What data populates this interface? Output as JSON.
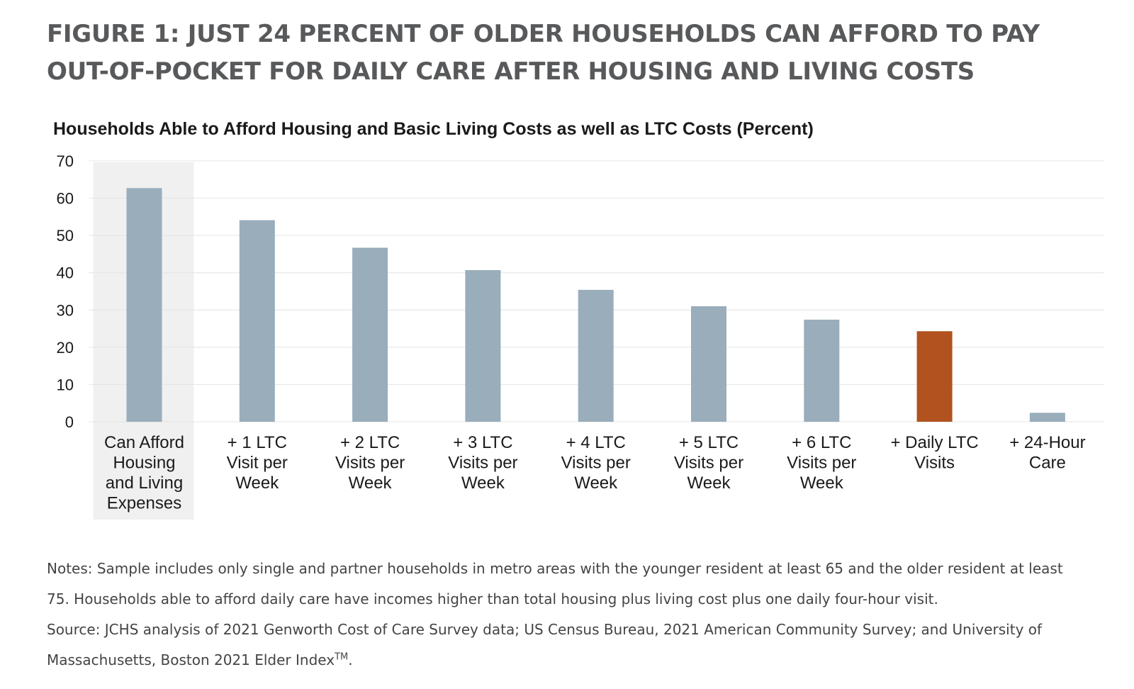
{
  "figure": {
    "title": "FIGURE 1: JUST 24 PERCENT OF OLDER HOUSEHOLDS CAN AFFORD TO PAY OUT-OF-POCKET FOR DAILY CARE AFTER HOUSING AND LIVING COSTS"
  },
  "colors": {
    "bar": "#99adbb",
    "highlight_bar": "#b1521f",
    "highlight_band": "#f0f0f0",
    "gridline": "#e4e4e4",
    "text": "#1a1a1a"
  },
  "chart_data": {
    "type": "bar",
    "title": "Households Able to Afford Housing and Basic Living Costs as well as LTC Costs (Percent)",
    "xlabel": "",
    "ylabel": "",
    "ylim": [
      0,
      70
    ],
    "yticks": [
      0,
      10,
      20,
      30,
      40,
      50,
      60,
      70
    ],
    "grid": true,
    "categories": [
      [
        "Can Afford",
        "Housing",
        "and Living",
        "Expenses"
      ],
      [
        "+ 1 LTC",
        "Visit per",
        "Week"
      ],
      [
        "+ 2 LTC",
        "Visits per",
        "Week"
      ],
      [
        "+ 3 LTC",
        "Visits per",
        "Week"
      ],
      [
        "+ 4 LTC",
        "Visits per",
        "Week"
      ],
      [
        "+ 5 LTC",
        "Visits per",
        "Week"
      ],
      [
        "+ 6 LTC",
        "Visits per",
        "Week"
      ],
      [
        "+ Daily LTC",
        "Visits"
      ],
      [
        "+ 24-Hour",
        "Care"
      ]
    ],
    "values": [
      62.7,
      54.1,
      46.7,
      40.7,
      35.4,
      31.0,
      27.4,
      24.3,
      2.4
    ],
    "highlighted_category_index": 0,
    "emphasized_bar_index": 7
  },
  "notes": {
    "notes_text": "Notes: Sample includes only single and partner households in metro areas with the younger resident at least 65 and the older resident at least 75. Households able to afford daily care have incomes higher than total housing plus living cost plus one daily four-hour visit.",
    "source_text": "Source: JCHS analysis of 2021 Genworth Cost of Care Survey data; US Census Bureau, 2021 American Community Survey; and University of Massachusetts, Boston 2021 Elder Index",
    "source_superscript": "TM",
    "source_end": "."
  }
}
